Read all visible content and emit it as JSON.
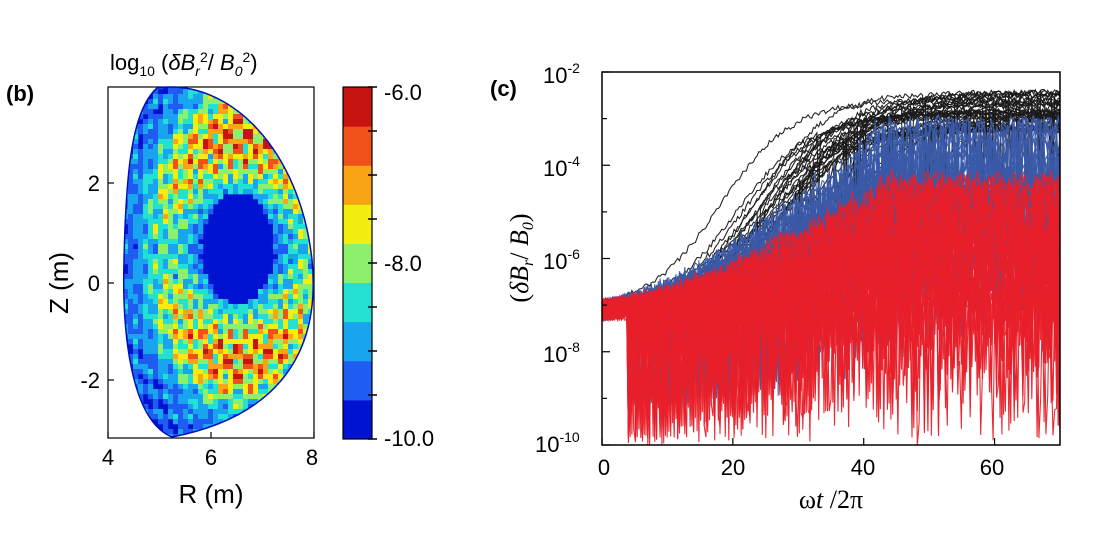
{
  "chart_data": [
    {
      "panel": "(b)",
      "type": "heatmap",
      "title": "log₁₀ (δBᵣ²/ B₀²)",
      "xlabel": "R (m)",
      "ylabel": "Z (m)",
      "xlim": [
        4,
        8
      ],
      "ylim": [
        -3.2,
        3.85
      ],
      "xticks": [
        "4",
        "6",
        "8"
      ],
      "yticks": [
        "-2",
        "0",
        "2"
      ],
      "colorbar": {
        "range": [
          -10.0,
          -6.0
        ],
        "labels": [
          "-6.0",
          "-8.0",
          "-10.0"
        ],
        "levels": 9,
        "colors": [
          "#0012d2",
          "#1e5cf2",
          "#18a4ee",
          "#22e0d2",
          "#8cf06c",
          "#f2ee10",
          "#f8a414",
          "#f0501a",
          "#c81410"
        ]
      },
      "description_values": {
        "core_region_R": 6.25,
        "core_region_Z": 0.55,
        "peak_log_value": -6.2,
        "edge_log_value": -10.0
      }
    },
    {
      "panel": "(c)",
      "type": "line",
      "xlabel": "ωt /2π",
      "ylabel": "(δBᵣ/ B₀)",
      "xlim": [
        0,
        70
      ],
      "ylim": [
        1e-10,
        0.01
      ],
      "yscale": "log",
      "xticks": [
        "0",
        "20",
        "40",
        "60"
      ],
      "yticks": [
        "10-2",
        "10-4",
        "10-6",
        "10-8",
        "10-10"
      ],
      "series": [
        {
          "color": "#1a1a1a",
          "count": 35,
          "start": 8e-08,
          "final_range": [
            0.0005,
            0.004
          ],
          "growth_onset": [
            0,
            40
          ]
        },
        {
          "color": "#3a5aa8",
          "count": 30,
          "start": 8e-08,
          "final_range": [
            1e-05,
            0.0008
          ],
          "fluctuation_floor": 1e-09
        },
        {
          "color": "#e8202a",
          "count": 30,
          "start": 8e-08,
          "final_range": [
            1e-07,
            5e-05
          ],
          "fluctuation_floor": 1e-10
        }
      ]
    }
  ]
}
